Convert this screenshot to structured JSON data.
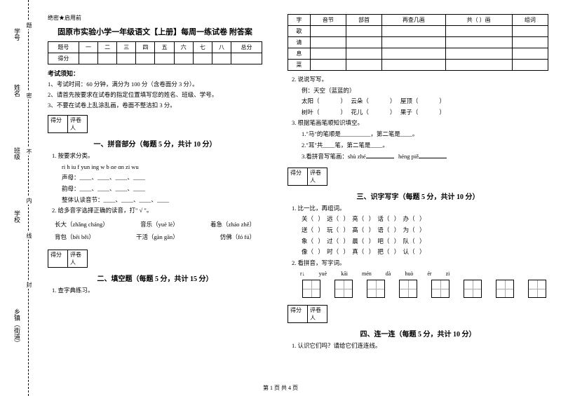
{
  "gutter": {
    "labels": [
      "学号",
      "姓名",
      "班级",
      "学校",
      "乡镇（街道）"
    ],
    "dashed_labels": [
      "题",
      "密",
      "不",
      "内",
      "线",
      "封"
    ]
  },
  "header": {
    "secret": "绝密★启用前",
    "title": "固原市实验小学一年级语文【上册】每周一练试卷 附答案"
  },
  "score_table": {
    "cols": [
      "题号",
      "一",
      "二",
      "三",
      "四",
      "五",
      "六",
      "七",
      "八",
      "总分"
    ],
    "row": "得分"
  },
  "notices": {
    "head": "考试须知：",
    "lines": [
      "1、考试时间：60 分钟，满分为 100 分（含卷面分 3 分）。",
      "2、请首先按要求在试卷的指定位置填写您的姓名、班级、学号。",
      "3、不要在试卷上乱涂乱画，卷面不整洁扣 3 分。"
    ]
  },
  "scorebox": {
    "c1": "得分",
    "c2": "评卷人"
  },
  "sec1": {
    "title": "一、拼音部分（每题 5 分，共计 10 分）",
    "q1": "1. 按要求分类。",
    "letters": "ri   h   iu   f   yun  ing   w   b   ɑe   ɑn   zi   wu",
    "l1": "声母：____、____、____、____",
    "l2": "韵母：____、____、____、____",
    "l3": "整体认读音节：____、____、____、____",
    "q2": "2. 给多音字选择正确的读音，打\" √ \"。",
    "wA": "长大（zhǎng  cháng）",
    "wB": "音乐（yuè  lè）",
    "wC": "着急（zháo  zhě）",
    "wD": "背包（bēi  běi）",
    "wE": "干活（gàn  gān）",
    "wF": "仿佛（fó  fú）"
  },
  "sec2": {
    "title": "二、填空题（每题 5 分，共计 15 分）",
    "q1": "1. 查字典练习。"
  },
  "char_table": {
    "head": [
      "字",
      "音节",
      "部首",
      "再查几画",
      "共（  ）画",
      "组词"
    ],
    "rows": [
      "歌",
      "请",
      "息",
      "菜"
    ]
  },
  "speak": {
    "head": "2. 说说写写。",
    "ex": "例：天空（蓝蓝的）",
    "l1a": "太阳（",
    "l1b": "云朵（",
    "l1c": "屋顶（",
    "l2a": "树叶（",
    "l2b": "花儿（",
    "l2c": "果子（",
    "close": "）"
  },
  "strokes": {
    "head": "3. 根据笔画笔顺知识填空。",
    "l1": "1.\"马\"的笔顺是__________，第二笔是____。",
    "l2": "2.\"耳\"共____笔，第二笔是____。",
    "l3a": "3.看拼音写笔画：shù zhé",
    "l3b": "héng piě"
  },
  "sec3": {
    "title": "三、识字写字（每题 5 分，共计 10 分）",
    "q1": "1. 比一比，再组词。",
    "rows": [
      [
        "关（",
        "远（",
        "亮（",
        "话（",
        "办（"
      ],
      [
        "送（",
        "玩（",
        "高（",
        "语（",
        "为（"
      ],
      [
        "象（",
        "过（",
        "晨（",
        "吧（",
        "队（"
      ],
      [
        "像（",
        "时（",
        "真（",
        "把（",
        "认（"
      ]
    ],
    "close": "）",
    "q2": "2. 看拼音，写字词。",
    "py": [
      "r↓",
      "yuè",
      "kāi",
      "mén",
      "dà",
      "huò",
      "ér",
      "zi"
    ]
  },
  "sec4": {
    "title": "四、连一连（每题 5 分，共计 10 分）",
    "q1": "1. 认识它们吗？请给它们连连线。"
  },
  "footer": "第 1 页 共 4 页"
}
